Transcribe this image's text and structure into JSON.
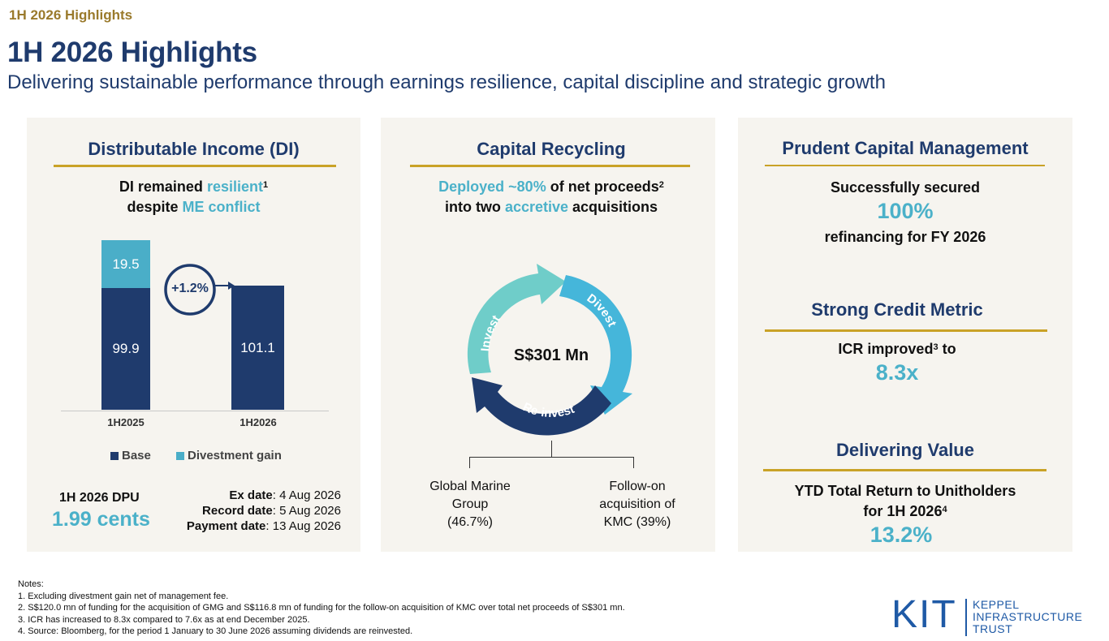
{
  "header": {
    "tag": "1H 2026 Highlights",
    "title": "1H 2026 Highlights",
    "subtitle": "Delivering sustainable performance through earnings resilience, capital discipline and strategic growth"
  },
  "di_panel": {
    "heading": "Distributable Income (DI)",
    "headline_line1_a": "DI remained ",
    "headline_line1_b": "resilient",
    "headline_line1_sup": "1",
    "headline_line2_a": "despite ",
    "headline_line2_b": "ME conflict",
    "growth_label": "+1.2%",
    "legend_base": "Base",
    "legend_gain": "Divestment gain",
    "dpu_label": "1H 2026 DPU",
    "dpu_value": "1.99 cents",
    "ex_date_label": "Ex date",
    "ex_date_value": ": 4 Aug 2026",
    "record_date_label": "Record date",
    "record_date_value": ": 5 Aug 2026",
    "payment_date_label": "Payment date",
    "payment_date_value": ": 13 Aug 2026"
  },
  "chart_data": {
    "type": "bar",
    "categories": [
      "1H2025",
      "1H2026"
    ],
    "series": [
      {
        "name": "Base",
        "values": [
          99.9,
          101.1
        ]
      },
      {
        "name": "Divestment gain",
        "values": [
          19.5,
          0
        ]
      }
    ],
    "stacked": true,
    "labels": {
      "1H2025_base": "99.9",
      "1H2025_gain": "19.5",
      "1H2026_base": "101.1"
    },
    "legend_position": "bottom",
    "grid": false,
    "colors": {
      "base": "#1f3b6d",
      "gain": "#4aaec8"
    }
  },
  "recycling_panel": {
    "heading": "Capital Recycling",
    "line1_a": "Deployed ~80%",
    "line1_b": " of net proceeds",
    "line1_sup": "2",
    "line2_a": "into two ",
    "line2_b": "accretive",
    "line2_c": " acquisitions",
    "cycle_center": "S$301 Mn",
    "arrow_invest": "Invest",
    "arrow_divest": "Divest",
    "arrow_reinvest": "Re-invest",
    "branch_left_1": "Global Marine",
    "branch_left_2": "Group",
    "branch_left_3": "(46.7%)",
    "branch_right_1": "Follow-on",
    "branch_right_2": "acquisition of",
    "branch_right_3": "KMC (39%)"
  },
  "capital_panel": {
    "heading1": "Prudent Capital Management",
    "text1_a": "Successfully secured",
    "value1": "100%",
    "text1_b": "refinancing for FY 2026",
    "heading2": "Strong Credit Metric",
    "text2_a": "ICR improved",
    "text2_sup": "3",
    "text2_b": " to",
    "value2": "8.3x",
    "heading3": "Delivering Value",
    "text3_a": "YTD Total Return to Unitholders",
    "text3_b": "for 1H 2026",
    "text3_sup": "4",
    "value3": "13.2%"
  },
  "notes": {
    "title": "Notes:",
    "n1": "1.  Excluding divestment gain net of management fee.",
    "n2": "2.  S$120.0 mn of funding for the acquisition of GMG and S$116.8 mn of funding for the follow-on acquisition of KMC over total net proceeds of S$301 mn.",
    "n3": "3.  ICR has increased to 8.3x compared to 7.6x as at end December 2025.",
    "n4": "4.  Source: Bloomberg, for the period 1 January to 30 June 2026 assuming dividends are reinvested."
  },
  "logo": {
    "mark": "KIT",
    "line1": "KEPPEL",
    "line2": "INFRASTRUCTURE",
    "line3": "TRUST"
  },
  "colors": {
    "navy": "#1f3b6d",
    "teal": "#4bb1c9",
    "gold": "#c9a227",
    "panel_bg": "#f6f4ef"
  }
}
